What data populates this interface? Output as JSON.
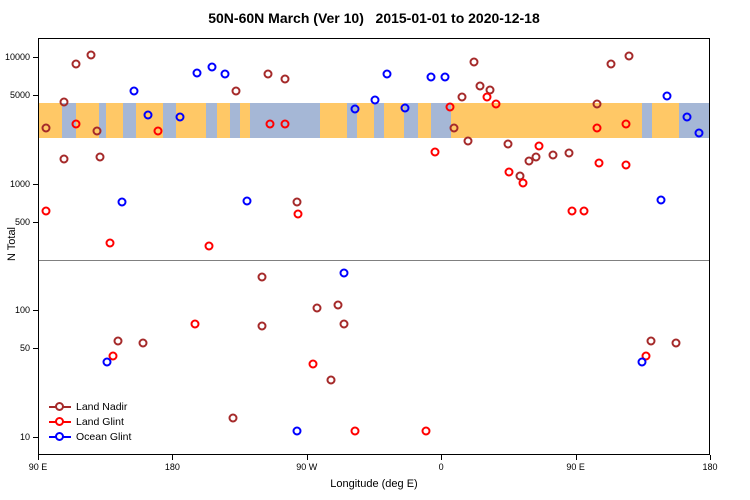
{
  "title": "50N-60N March (Ver 10)   2015-01-01 to 2020-12-18",
  "chart_data": {
    "type": "scatter",
    "title": "50N-60N March (Ver 10)   2015-01-01 to 2020-12-18",
    "xlabel": "Longitude (deg E)",
    "ylabel": "N Total",
    "x_axis": {
      "range": [
        90,
        540
      ],
      "ticks": [
        {
          "value": 90,
          "label": "90 E"
        },
        {
          "value": 180,
          "label": "180"
        },
        {
          "value": 270,
          "label": "90 W"
        },
        {
          "value": 360,
          "label": "0"
        },
        {
          "value": 450,
          "label": "90 E"
        },
        {
          "value": 540,
          "label": "180"
        }
      ],
      "note": "longitude axis wraps: 90E to 180 to 90W to 0 to 90E to 180"
    },
    "y_axis": {
      "scale": "log",
      "range": [
        7.2,
        14100
      ],
      "ticks": [
        10,
        50,
        100,
        500,
        1000,
        5000,
        10000
      ]
    },
    "reference_line": {
      "y": 250,
      "color": "#808080"
    },
    "map_band": {
      "y_range": [
        2300,
        4400
      ],
      "ocean_color": "#A5B7D6",
      "land_color": "#FFC866",
      "land_segments": [
        [
          0.0,
          0.035
        ],
        [
          0.055,
          0.09
        ],
        [
          0.1,
          0.125
        ],
        [
          0.145,
          0.185
        ],
        [
          0.205,
          0.25
        ],
        [
          0.265,
          0.285
        ],
        [
          0.3,
          0.315
        ],
        [
          0.42,
          0.46
        ],
        [
          0.475,
          0.5
        ],
        [
          0.515,
          0.545
        ],
        [
          0.565,
          0.585
        ],
        [
          0.615,
          0.9
        ],
        [
          0.915,
          0.955
        ]
      ]
    },
    "legend": {
      "position": "bottom-left"
    },
    "series": [
      {
        "name": "Land Nadir",
        "color": "#A52A2A",
        "points": [
          [
            95,
            2800
          ],
          [
            107,
            4500
          ],
          [
            107,
            1570
          ],
          [
            115,
            9000
          ],
          [
            125,
            10500
          ],
          [
            129,
            2610
          ],
          [
            131,
            1625
          ],
          [
            143,
            57
          ],
          [
            160,
            55
          ],
          [
            222,
            5500
          ],
          [
            220,
            14
          ],
          [
            240,
            183
          ],
          [
            240,
            74
          ],
          [
            244,
            7480
          ],
          [
            255,
            6800
          ],
          [
            263,
            716
          ],
          [
            277,
            104
          ],
          [
            286,
            28
          ],
          [
            291,
            110
          ],
          [
            295,
            77
          ],
          [
            369,
            2750
          ],
          [
            374,
            4900
          ],
          [
            378,
            2170
          ],
          [
            382,
            9200
          ],
          [
            386,
            6000
          ],
          [
            393,
            5600
          ],
          [
            405,
            2060
          ],
          [
            413,
            1150
          ],
          [
            419,
            1510
          ],
          [
            424,
            1625
          ],
          [
            435,
            1680
          ],
          [
            446,
            1745
          ],
          [
            465,
            4330
          ],
          [
            474,
            9000
          ],
          [
            486,
            10400
          ],
          [
            501,
            57
          ],
          [
            518,
            55
          ]
        ]
      },
      {
        "name": "Land Glint",
        "color": "#FF0000",
        "points": [
          [
            95,
            608
          ],
          [
            115,
            3000
          ],
          [
            138,
            340
          ],
          [
            140,
            43
          ],
          [
            170,
            2610
          ],
          [
            195,
            78
          ],
          [
            204,
            322
          ],
          [
            245,
            3000
          ],
          [
            255,
            3000
          ],
          [
            264,
            575
          ],
          [
            274,
            37
          ],
          [
            302,
            11
          ],
          [
            350,
            11
          ],
          [
            356,
            1780
          ],
          [
            366,
            4100
          ],
          [
            391,
            4870
          ],
          [
            397,
            4330
          ],
          [
            406,
            1240
          ],
          [
            415,
            1010
          ],
          [
            426,
            1980
          ],
          [
            448,
            608
          ],
          [
            456,
            608
          ],
          [
            465,
            2800
          ],
          [
            466,
            1455
          ],
          [
            484,
            1400
          ],
          [
            484,
            3000
          ],
          [
            498,
            43
          ]
        ]
      },
      {
        "name": "Ocean Glint",
        "color": "#0000FF",
        "points": [
          [
            136,
            39
          ],
          [
            146,
            716
          ],
          [
            154,
            5500
          ],
          [
            163,
            3530
          ],
          [
            185,
            3390
          ],
          [
            196,
            7600
          ],
          [
            206,
            8500
          ],
          [
            215,
            7400
          ],
          [
            230,
            730
          ],
          [
            263,
            11
          ],
          [
            295,
            195
          ],
          [
            302,
            3950
          ],
          [
            316,
            4600
          ],
          [
            324,
            7480
          ],
          [
            336,
            4000
          ],
          [
            353,
            7100
          ],
          [
            363,
            7100
          ],
          [
            495,
            39
          ],
          [
            508,
            744
          ],
          [
            512,
            5000
          ],
          [
            525,
            3400
          ],
          [
            533,
            2550
          ]
        ]
      }
    ]
  }
}
